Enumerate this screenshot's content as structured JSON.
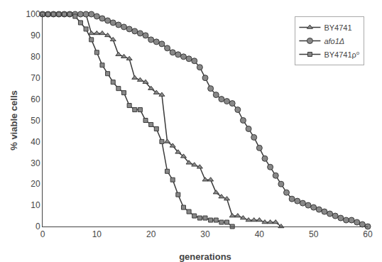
{
  "chart_data": {
    "type": "line",
    "xlabel": "generations",
    "ylabel": "% viable cells",
    "xlim": [
      0,
      60
    ],
    "ylim": [
      0,
      100
    ],
    "xticks": [
      0,
      10,
      20,
      30,
      40,
      50,
      60
    ],
    "yticks": [
      0,
      10,
      20,
      30,
      40,
      50,
      60,
      70,
      80,
      90,
      100
    ],
    "grid": false,
    "legend": "upper right",
    "series": [
      {
        "name": "BY4741",
        "color": "#3a3a3a",
        "marker": "triangle",
        "x": [
          0,
          1,
          2,
          3,
          4,
          5,
          6,
          7,
          8,
          9,
          10,
          11,
          12,
          13,
          14,
          15,
          16,
          17,
          18,
          19,
          20,
          21,
          22,
          23,
          24,
          25,
          26,
          27,
          28,
          29,
          30,
          31,
          32,
          33,
          34,
          35,
          36,
          37,
          38,
          39,
          40,
          41,
          42,
          43,
          44
        ],
        "values": [
          100,
          100,
          100,
          100,
          100,
          100,
          100,
          100,
          100,
          91,
          91,
          91,
          90,
          88,
          81,
          80,
          79,
          70,
          69,
          68,
          65,
          63,
          62,
          40,
          38,
          35,
          33,
          30,
          29,
          28,
          22,
          22,
          16,
          14,
          13,
          5,
          5,
          4,
          3,
          3,
          3,
          2,
          2,
          2,
          0
        ]
      },
      {
        "name": "afo1Δ",
        "color": "#3a3a3a",
        "marker": "circle",
        "x": [
          0,
          1,
          2,
          3,
          4,
          5,
          6,
          7,
          8,
          9,
          10,
          11,
          12,
          13,
          14,
          15,
          16,
          17,
          18,
          19,
          20,
          21,
          22,
          23,
          24,
          25,
          26,
          27,
          28,
          29,
          30,
          31,
          32,
          33,
          34,
          35,
          36,
          37,
          38,
          39,
          40,
          41,
          42,
          43,
          44,
          45,
          46,
          47,
          48,
          49,
          50,
          51,
          52,
          53,
          54,
          55,
          56,
          57,
          58,
          59,
          60
        ],
        "values": [
          100,
          100,
          100,
          100,
          100,
          100,
          100,
          100,
          100,
          100,
          99,
          98,
          97,
          96,
          95,
          94,
          93,
          92,
          91,
          90,
          88,
          87,
          86,
          84,
          82,
          81,
          80,
          79,
          78,
          75,
          70,
          65,
          62,
          60,
          59,
          58,
          55,
          50,
          46,
          42,
          37,
          32,
          28,
          24,
          20,
          16,
          13,
          12,
          11,
          10,
          9,
          8,
          7,
          6,
          5,
          4,
          3,
          3,
          2,
          1,
          0
        ]
      },
      {
        "name": "BY4741ρ⁰",
        "color": "#3a3a3a",
        "marker": "square",
        "x": [
          0,
          1,
          2,
          3,
          4,
          5,
          6,
          7,
          8,
          9,
          10,
          11,
          12,
          13,
          14,
          15,
          16,
          17,
          18,
          19,
          20,
          21,
          22,
          23,
          24,
          25,
          26,
          27,
          28,
          29,
          30,
          31,
          32,
          33,
          34,
          35
        ],
        "values": [
          100,
          100,
          100,
          100,
          100,
          100,
          99,
          96,
          93,
          88,
          82,
          76,
          72,
          68,
          65,
          63,
          57,
          55,
          55,
          50,
          48,
          46,
          40,
          26,
          22,
          15,
          9,
          7,
          5,
          4,
          4,
          3,
          3,
          2,
          2,
          0
        ]
      }
    ]
  }
}
